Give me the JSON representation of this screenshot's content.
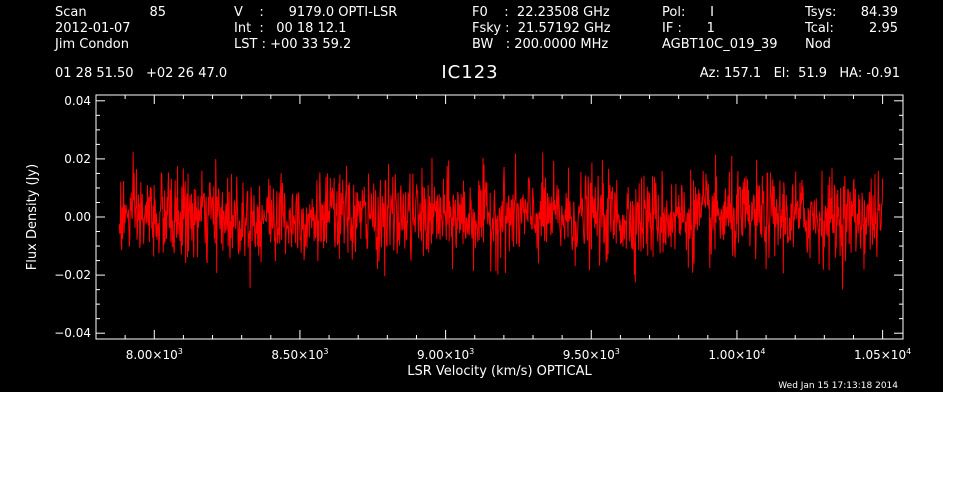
{
  "header": {
    "col1": {
      "scan_label": "Scan",
      "scan_value": "85",
      "date": "2012-01-07",
      "observer": "Jim Condon"
    },
    "col2": {
      "line1": "V    :      9179.0 OPTI-LSR",
      "line2": "Int  :   00 18 12.1",
      "line3": "LST : +00 33 59.2"
    },
    "col3": {
      "line1": "F0    :  22.23508 GHz",
      "line2": "Fsky :  21.57192 GHz",
      "line3": "BW   : 200.0000 MHz"
    },
    "col4": {
      "line1": "Pol:      I",
      "line2": "IF :      1",
      "line3": "AGBT10C_019_39"
    },
    "col5": {
      "tsys_label": "Tsys:",
      "tsys_value": "84.39",
      "tcal_label": "Tcal:",
      "tcal_value": "2.95",
      "mode": "Nod"
    },
    "coords": "01 28 51.50   +02 26 47.0",
    "pointing": "Az: 157.1   El:  51.9   HA: -0.91",
    "source": "IC123"
  },
  "timestamp": "Wed Jan 15 17:13:18 2014",
  "colors": {
    "background": "#000000",
    "foreground": "#ffffff",
    "series": "#ff0000"
  },
  "chart_data": {
    "type": "line",
    "xlabel": "LSR Velocity (km/s) OPTICAL",
    "ylabel": "Flux Density (Jy)",
    "xlim": [
      7800,
      10570
    ],
    "ylim": [
      -0.042,
      0.042
    ],
    "x_start": 7880,
    "x_end": 10500,
    "n_points": 1600,
    "noise_rms": 0.0075,
    "noise_peak": 0.03,
    "baseline": 0.0,
    "y_ticks": [
      {
        "value": -0.04,
        "label": "−0.04"
      },
      {
        "value": -0.02,
        "label": "−0.02"
      },
      {
        "value": 0.0,
        "label": "0.00"
      },
      {
        "value": 0.02,
        "label": "0.02"
      },
      {
        "value": 0.04,
        "label": "0.04"
      }
    ],
    "x_ticks": [
      {
        "value": 8000,
        "mantissa": "8.00",
        "exp": "3"
      },
      {
        "value": 8500,
        "mantissa": "8.50",
        "exp": "3"
      },
      {
        "value": 9000,
        "mantissa": "9.00",
        "exp": "3"
      },
      {
        "value": 9500,
        "mantissa": "9.50",
        "exp": "3"
      },
      {
        "value": 10000,
        "mantissa": "1.00",
        "exp": "4"
      },
      {
        "value": 10500,
        "mantissa": "1.05",
        "exp": "4"
      }
    ],
    "y_minor_step": 0.005,
    "x_minor_step": 100,
    "grid": false,
    "legend": "none"
  }
}
